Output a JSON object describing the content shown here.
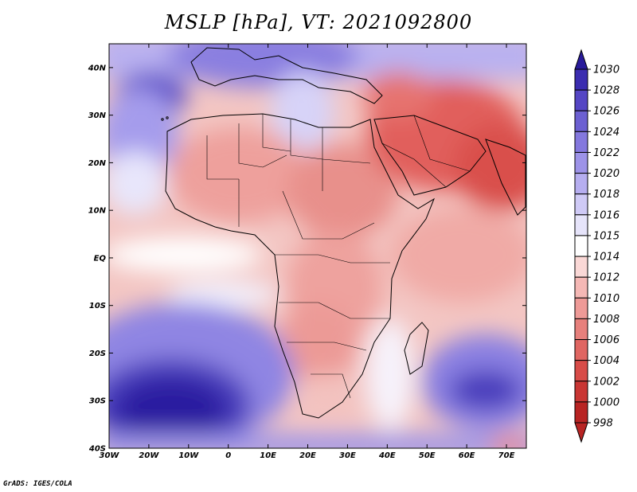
{
  "title": "MSLP [hPa], VT: 2021092800",
  "credit": "GrADS: IGES/COLA",
  "map": {
    "lon_range": [
      -30,
      75
    ],
    "lat_range": [
      -40,
      45
    ],
    "lon_ticks": [
      "30W",
      "20W",
      "10W",
      "0",
      "10E",
      "20E",
      "30E",
      "40E",
      "50E",
      "60E",
      "70E"
    ],
    "lat_ticks": [
      "40N",
      "30N",
      "20N",
      "10N",
      "EQ",
      "10S",
      "20S",
      "30S",
      "40S"
    ]
  },
  "colorbar": {
    "labels": [
      "1030",
      "1028",
      "1026",
      "1024",
      "1022",
      "1020",
      "1018",
      "1016",
      "1015",
      "1014",
      "1012",
      "1010",
      "1008",
      "1006",
      "1004",
      "1002",
      "1000",
      "998"
    ],
    "colors": [
      "#281a9a",
      "#3b2db0",
      "#5546c4",
      "#6c60d2",
      "#8478de",
      "#9d93e8",
      "#b6aef0",
      "#cfcaf6",
      "#e6e4fa",
      "#ffffff",
      "#fad8d6",
      "#f5b8b5",
      "#ee9a97",
      "#e7807c",
      "#e06662",
      "#d84c48",
      "#c93634",
      "#b82423"
    ]
  }
}
